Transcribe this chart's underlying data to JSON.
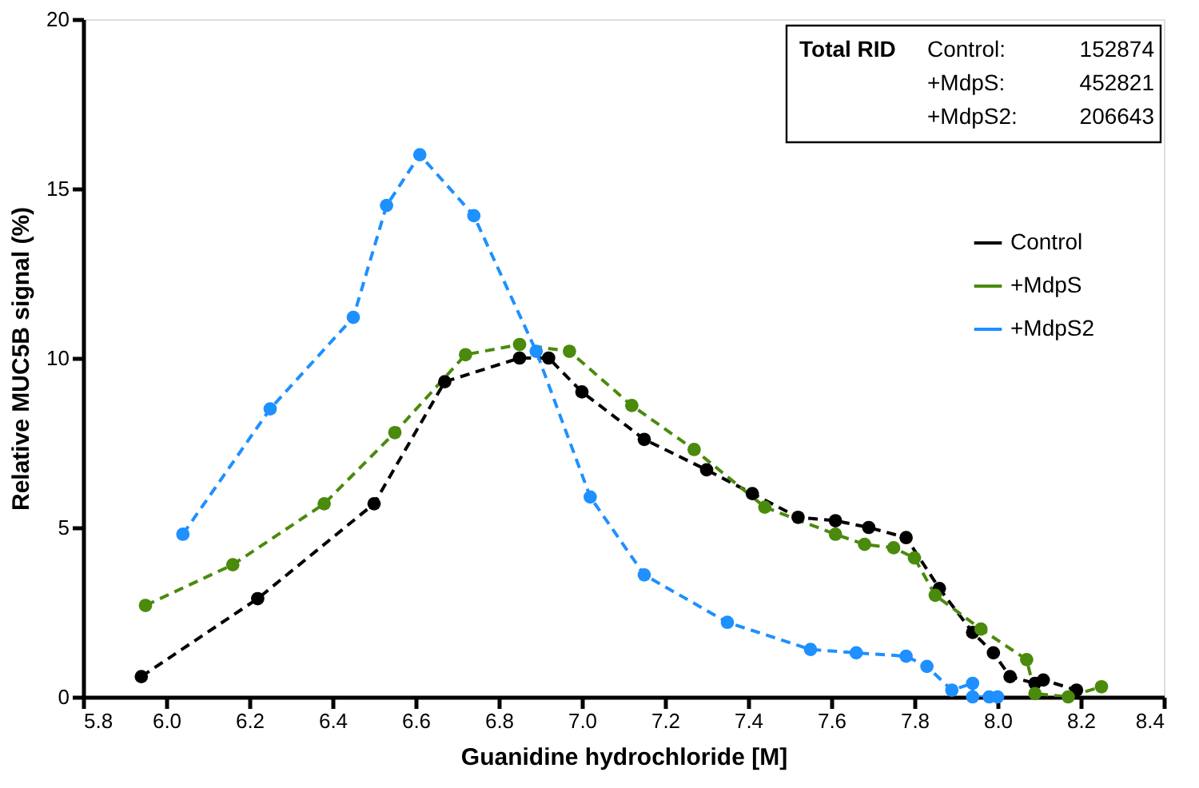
{
  "chart_data": {
    "type": "line",
    "xlabel": "Guanidine hydrochloride [M]",
    "ylabel": "Relative MUC5B signal (%)",
    "xlim": [
      5.8,
      8.4
    ],
    "xticks": [
      5.8,
      {
        "value": 6,
        "label": "6.0"
      },
      6.2,
      6.4,
      6.6,
      6.8,
      {
        "value": 7,
        "label": "7.0"
      },
      7.2,
      7.4,
      7.6,
      7.8,
      {
        "value": 8,
        "label": "8.0"
      },
      8.2,
      8.4
    ],
    "ylim": [
      0,
      20
    ],
    "yticks": [
      0,
      5,
      10,
      15,
      20
    ],
    "grid": false,
    "legend": "right",
    "marker": "circle",
    "line_style": "dashed",
    "annotations": [
      "Total RID",
      "Control:",
      "152874",
      "+MdpS:",
      "452821",
      "+MdpS2:",
      "206643"
    ],
    "series": [
      {
        "name": "Control",
        "color": "#000000",
        "x": [
          5.94,
          6.22,
          6.5,
          6.67,
          6.85,
          6.92,
          7.0,
          7.15,
          7.3,
          7.41,
          7.52,
          7.61,
          7.69,
          7.78,
          7.86,
          7.94,
          7.99,
          8.03,
          8.09,
          8.11,
          8.19
        ],
        "values": [
          0.6,
          2.9,
          5.7,
          9.3,
          10.0,
          10.0,
          9.0,
          7.6,
          6.7,
          6.0,
          5.3,
          5.2,
          5.0,
          4.7,
          3.2,
          1.9,
          1.3,
          0.6,
          0.4,
          0.5,
          0.2
        ]
      },
      {
        "name": "+MdpS",
        "color": "#4a8a0c",
        "x": [
          5.95,
          6.16,
          6.38,
          6.55,
          6.72,
          6.85,
          6.97,
          7.12,
          7.27,
          7.44,
          7.61,
          7.68,
          7.75,
          7.8,
          7.85,
          7.96,
          8.07,
          8.09,
          8.17,
          8.25
        ],
        "values": [
          2.7,
          3.9,
          5.7,
          7.8,
          10.1,
          10.4,
          10.2,
          8.6,
          7.3,
          5.6,
          4.8,
          4.5,
          4.4,
          4.1,
          3.0,
          2.0,
          1.1,
          0.1,
          0.0,
          0.3
        ]
      },
      {
        "name": "+MdpS2",
        "color": "#1e90ff",
        "x": [
          6.04,
          6.25,
          6.45,
          6.53,
          6.61,
          6.74,
          6.89,
          7.02,
          7.15,
          7.35,
          7.55,
          7.66,
          7.78,
          7.83,
          7.89,
          7.94,
          7.94,
          7.98,
          8.0
        ],
        "values": [
          4.8,
          8.5,
          11.2,
          14.5,
          16.0,
          14.2,
          10.2,
          5.9,
          3.6,
          2.2,
          1.4,
          1.3,
          1.2,
          0.9,
          0.2,
          0.4,
          0.0,
          0.0,
          0.0
        ]
      }
    ]
  }
}
